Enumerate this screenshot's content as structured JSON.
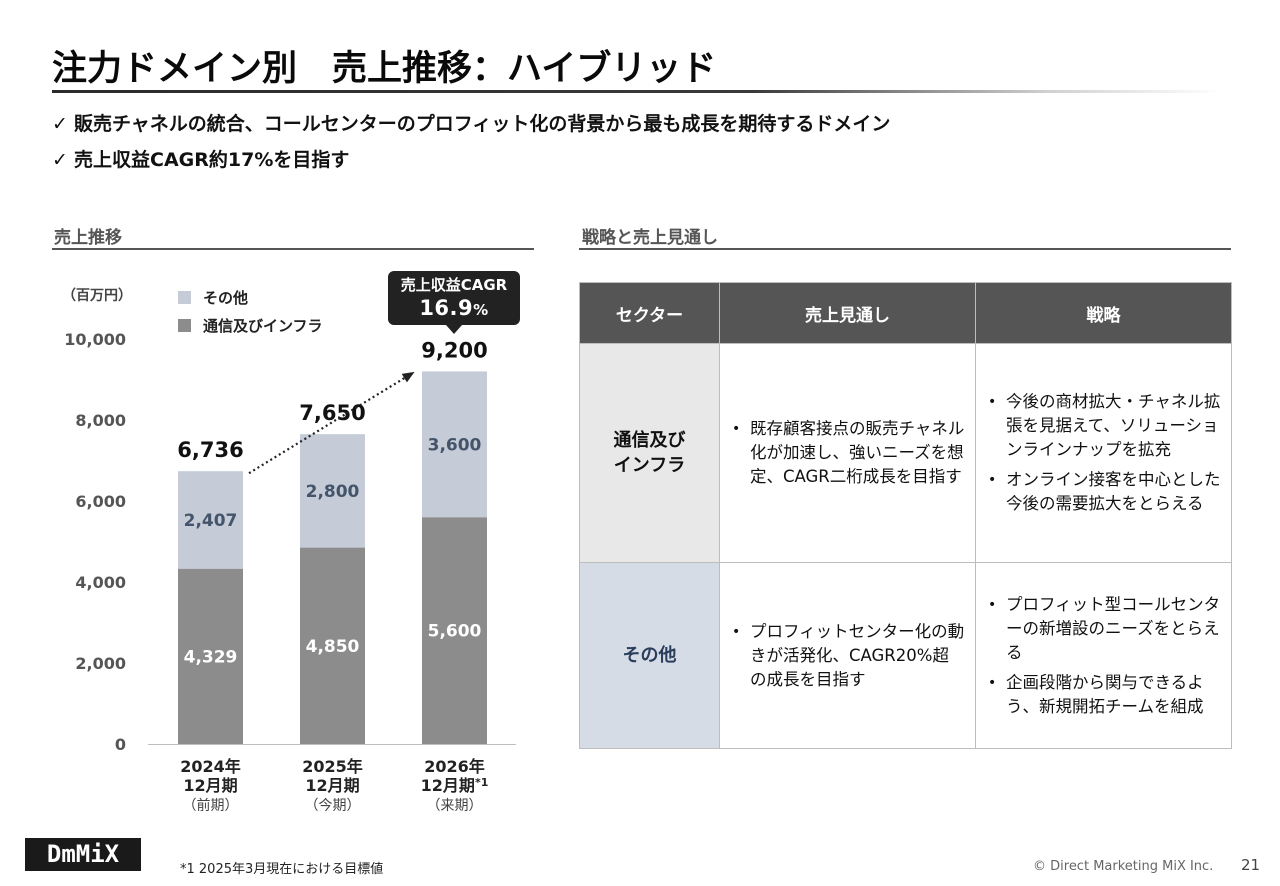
{
  "title": "注力ドメイン別　売上推移：ハイブリッド",
  "bullets": [
    "販売チャネルの統合、コールセンターのプロフィット化の背景から最も成長を期待するドメイン",
    "売上収益CAGR約17%を目指す"
  ],
  "check_mark": "✓",
  "left_section": {
    "heading": "売上推移"
  },
  "right_section": {
    "heading": "戦略と売上見通し"
  },
  "chart_data": {
    "type": "bar",
    "stacked": true,
    "unit": "（百万円）",
    "categories": [
      [
        "2024年",
        "12月期",
        "（前期）"
      ],
      [
        "2025年",
        "12月期",
        "（今期）"
      ],
      [
        "2026年",
        "12月期*1",
        "（来期）"
      ]
    ],
    "series": [
      {
        "name": "通信及びインフラ",
        "values": [
          4329,
          4850,
          5600
        ],
        "color": "#8c8c8c",
        "label_color": "#ffffff"
      },
      {
        "name": "その他",
        "values": [
          2407,
          2800,
          3600
        ],
        "color": "#c5ccd8",
        "label_color": "#44546a"
      }
    ],
    "totals": [
      6736,
      7650,
      9200
    ],
    "ylim": [
      0,
      10000
    ],
    "yticks": [
      0,
      2000,
      4000,
      6000,
      8000,
      10000
    ],
    "legend_order": [
      "その他",
      "通信及びインフラ"
    ],
    "legend_position": "top-left",
    "trend_arrow": "dotted",
    "grid": false
  },
  "cagr_callout": {
    "label": "売上収益CAGR",
    "value": "16.9",
    "unit": "%"
  },
  "table": {
    "headers": [
      "セクター",
      "売上見通し",
      "戦略"
    ],
    "rows": [
      {
        "sector_lines": [
          "通信及び",
          "インフラ"
        ],
        "outlook": [
          "既存顧客接点の販売チャネル化が加速し、強いニーズを想定、CAGR二桁成長を目指す"
        ],
        "strategy": [
          "今後の商材拡大・チャネル拡張を見据えて、ソリューションラインナップを拡充",
          "オンライン接客を中心とした今後の需要拡大をとらえる"
        ]
      },
      {
        "sector_lines": [
          "その他"
        ],
        "outlook": [
          "プロフィットセンター化の動きが活発化、CAGR20%超の成長を目指す"
        ],
        "strategy": [
          "プロフィット型コールセンターの新増設のニーズをとらえる",
          "企画段階から関与できるよう、新規開拓チームを組成"
        ]
      }
    ]
  },
  "footer": {
    "logo": "DmMiX",
    "footnote": "*1  2025年3月現在における目標値",
    "copyright": "© Direct Marketing MiX Inc.",
    "page_number": "21"
  }
}
